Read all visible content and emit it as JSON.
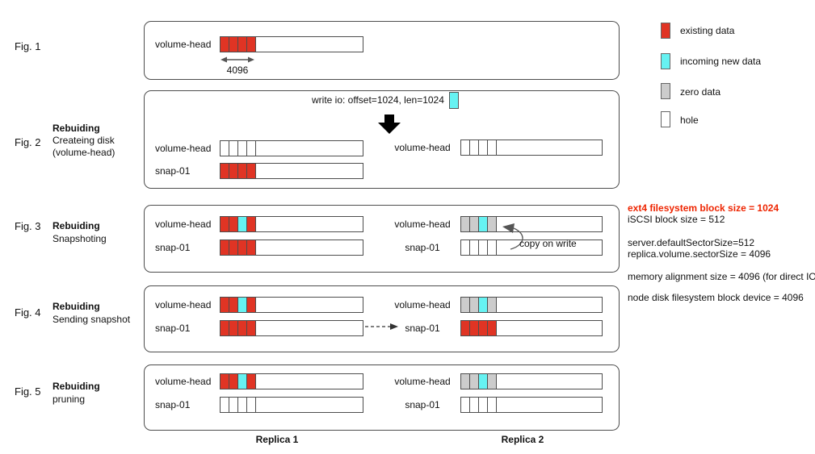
{
  "colors": {
    "existing": "#e03424",
    "incoming": "#66f2f2",
    "zero": "#cccccc",
    "hole": "#ffffff",
    "note_highlight": "#ee2400"
  },
  "labels": {
    "volume_head": "volume-head",
    "snap": "snap-01"
  },
  "footer": {
    "replica1": "Replica 1",
    "replica2": "Replica 2"
  },
  "legend": {
    "items": [
      {
        "key": "existing",
        "label": "existing data"
      },
      {
        "key": "incoming",
        "label": "incoming new data"
      },
      {
        "key": "zero",
        "label": "zero data"
      },
      {
        "key": "hole",
        "label": "hole"
      }
    ]
  },
  "notes": {
    "line1": "ext4 filesystem block size = 1024",
    "line2": "iSCSI block size = 512",
    "line3": "server.defaultSectorSize=512",
    "line4": "replica.volume.sectorSize = 4096",
    "line5": "memory alignment size = 4096 (for direct IO)",
    "line6": "node disk filesystem block device = 4096"
  },
  "icons": {
    "down_arrow": "solid black down arrow",
    "double_arrow": "double-headed width arrow",
    "dashed_arrow": "dashed right arrow",
    "curved_arrow": "curved copy-on-write arrow"
  },
  "figures": {
    "fig1": {
      "id": "Fig. 1",
      "size_annotation": "4096",
      "volume_head_cells": [
        "existing",
        "existing",
        "existing",
        "existing"
      ]
    },
    "fig2": {
      "id": "Fig. 2",
      "heading": "Rebuiding",
      "sub1": "Createing disk",
      "sub2": "(volume-head)",
      "write_io": "write io: offset=1024, len=1024",
      "left_volume_head_cells": [
        "hole",
        "hole",
        "hole",
        "hole"
      ],
      "left_snap_cells": [
        "existing",
        "existing",
        "existing",
        "existing"
      ],
      "right_volume_head_cells": [
        "hole",
        "hole",
        "hole",
        "hole"
      ]
    },
    "fig3": {
      "id": "Fig. 3",
      "heading": "Rebuiding",
      "sub1": "Snapshoting",
      "copy_on_write": "copy on write",
      "left_volume_head_cells": [
        "existing",
        "existing",
        "incoming",
        "existing"
      ],
      "left_snap_cells": [
        "existing",
        "existing",
        "existing",
        "existing"
      ],
      "right_volume_head_cells": [
        "zero",
        "zero",
        "incoming",
        "zero"
      ],
      "right_snap_cells": [
        "hole",
        "hole",
        "hole",
        "hole"
      ]
    },
    "fig4": {
      "id": "Fig. 4",
      "heading": "Rebuiding",
      "sub1": "Sending snapshot",
      "left_volume_head_cells": [
        "existing",
        "existing",
        "incoming",
        "existing"
      ],
      "left_snap_cells": [
        "existing",
        "existing",
        "existing",
        "existing"
      ],
      "right_volume_head_cells": [
        "zero",
        "zero",
        "incoming",
        "zero"
      ],
      "right_snap_cells": [
        "existing",
        "existing",
        "existing",
        "existing"
      ]
    },
    "fig5": {
      "id": "Fig. 5",
      "heading": "Rebuiding",
      "sub1": "pruning",
      "left_volume_head_cells": [
        "existing",
        "existing",
        "incoming",
        "existing"
      ],
      "left_snap_cells": [
        "hole",
        "hole",
        "hole",
        "hole"
      ],
      "right_volume_head_cells": [
        "zero",
        "zero",
        "incoming",
        "zero"
      ],
      "right_snap_cells": [
        "hole",
        "hole",
        "hole",
        "hole"
      ]
    }
  }
}
